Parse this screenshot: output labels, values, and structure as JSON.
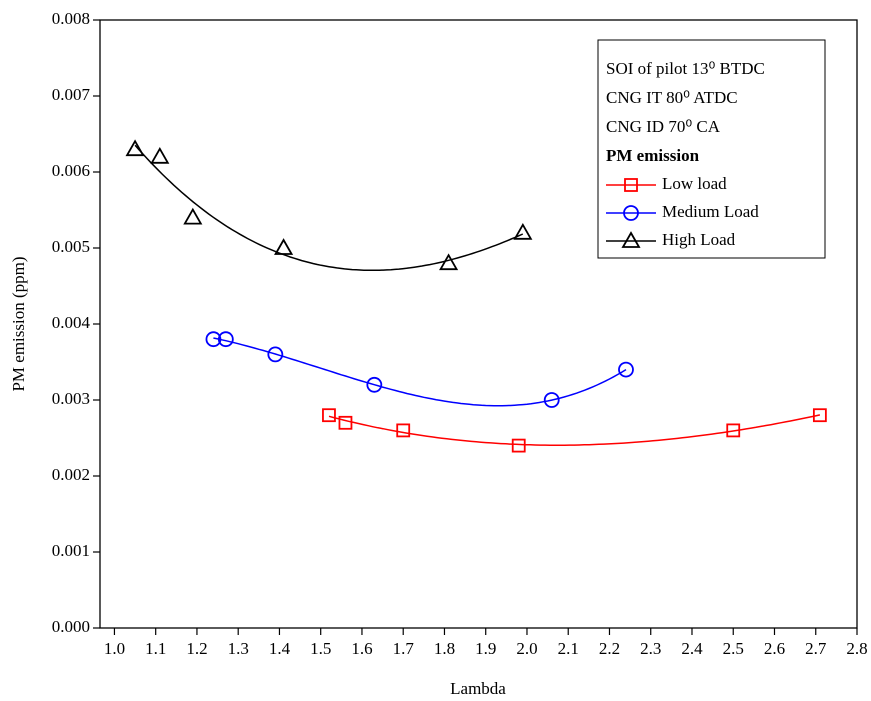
{
  "chart_data": {
    "type": "line",
    "xlabel": "Lambda",
    "ylabel": "PM emission (ppm)",
    "annotations": [
      "SOI of pilot 13⁰ BTDC",
      "CNG IT 80⁰ ATDC",
      "CNG ID 70⁰ CA",
      "PM emission"
    ],
    "xlim": [
      0.965,
      2.8
    ],
    "xticks": [
      {
        "value": 1.0,
        "label": "1.0"
      },
      {
        "value": 1.1,
        "label": "1.1"
      },
      {
        "value": 1.2,
        "label": "1.2"
      },
      {
        "value": 1.3,
        "label": "1.3"
      },
      {
        "value": 1.4,
        "label": "1.4"
      },
      {
        "value": 1.5,
        "label": "1.5"
      },
      {
        "value": 1.6,
        "label": "1.6"
      },
      {
        "value": 1.7,
        "label": "1.7"
      },
      {
        "value": 1.8,
        "label": "1.8"
      },
      {
        "value": 1.9,
        "label": "1.9"
      },
      {
        "value": 2.0,
        "label": "2.0"
      },
      {
        "value": 2.1,
        "label": "2.1"
      },
      {
        "value": 2.2,
        "label": "2.2"
      },
      {
        "value": 2.3,
        "label": "2.3"
      },
      {
        "value": 2.4,
        "label": "2.4"
      },
      {
        "value": 2.5,
        "label": "2.5"
      },
      {
        "value": 2.6,
        "label": "2.6"
      },
      {
        "value": 2.7,
        "label": "2.7"
      },
      {
        "value": 2.8,
        "label": "2.8"
      }
    ],
    "ylim": [
      0,
      0.008
    ],
    "yticks": [
      {
        "value": 0,
        "label": "0.000"
      },
      {
        "value": 0.001,
        "label": "0.001"
      },
      {
        "value": 0.002,
        "label": "0.002"
      },
      {
        "value": 0.003,
        "label": "0.003"
      },
      {
        "value": 0.004,
        "label": "0.004"
      },
      {
        "value": 0.005,
        "label": "0.005"
      },
      {
        "value": 0.006,
        "label": "0.006"
      },
      {
        "value": 0.007,
        "label": "0.007"
      },
      {
        "value": 0.008,
        "label": "0.008"
      }
    ],
    "series": [
      {
        "name": "Low load",
        "color": "#ff0000",
        "marker": "square",
        "x": [
          1.52,
          1.56,
          1.7,
          1.98,
          2.5,
          2.71
        ],
        "values": [
          0.0028,
          0.0027,
          0.0026,
          0.0024,
          0.0026,
          0.0028
        ]
      },
      {
        "name": "Medium Load",
        "color": "#0000ff",
        "marker": "circle",
        "x": [
          1.24,
          1.27,
          1.39,
          1.63,
          2.06,
          2.24
        ],
        "values": [
          0.0038,
          0.0038,
          0.0036,
          0.0032,
          0.003,
          0.0034
        ]
      },
      {
        "name": "High Load",
        "color": "#000000",
        "marker": "triangle",
        "x": [
          1.05,
          1.11,
          1.19,
          1.41,
          1.81,
          1.99
        ],
        "values": [
          0.0063,
          0.0062,
          0.0054,
          0.005,
          0.0048,
          0.0052
        ]
      }
    ]
  }
}
